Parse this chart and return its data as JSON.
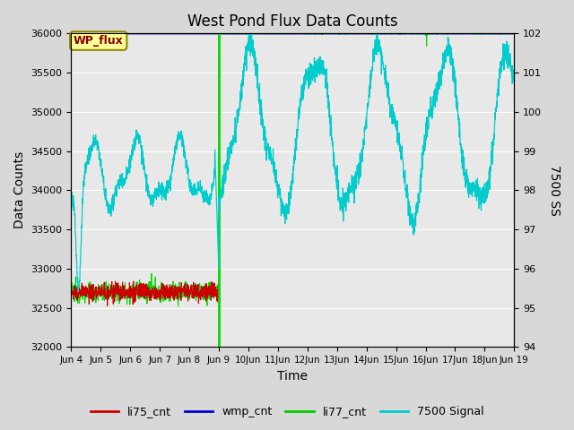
{
  "title": "West Pond Flux Data Counts",
  "ylabel_left": "Data Counts",
  "ylabel_right": "7500 SS",
  "xlabel": "Time",
  "ylim_left": [
    32000,
    36000
  ],
  "ylim_right": [
    94.0,
    102.0
  ],
  "yticks_left": [
    32000,
    32500,
    33000,
    33500,
    34000,
    34500,
    35000,
    35500,
    36000
  ],
  "yticks_right": [
    94.0,
    95.0,
    96.0,
    97.0,
    98.0,
    99.0,
    100.0,
    101.0,
    102.0
  ],
  "wp_flux_label": "WP_flux",
  "legend_labels": [
    "li75_cnt",
    "wmp_cnt",
    "li77_cnt",
    "7500 Signal"
  ],
  "legend_colors": [
    "#cc0000",
    "#0000cc",
    "#00cc00",
    "#00cccc"
  ],
  "bg_color": "#d8d8d8",
  "ax_bg_color": "#e8e8e8",
  "wp_box_facecolor": "#ffff99",
  "wp_box_edgecolor": "#888800",
  "wp_text_color": "#880000",
  "line_li77_color": "#00dd00",
  "line_wmp_color": "#0000cc",
  "line_li75_color": "#cc0000",
  "line_cyan_color": "#00cccc",
  "vline_color": "#00dd00",
  "grid_color": "#ffffff",
  "x_ticks": [
    0,
    1,
    2,
    3,
    4,
    5,
    6,
    7,
    8,
    9,
    10,
    11,
    12,
    13,
    14,
    15
  ],
  "x_tick_labels": [
    "Jun 4",
    "Jun 5",
    "Jun 6",
    "Jun 7",
    "Jun 8",
    "Jun 9",
    "10Jun",
    "11Jun",
    "12Jun",
    "13Jun",
    "14Jun",
    "15Jun",
    "16Jun",
    "17Jun",
    "18Jun",
    "Jun 19"
  ],
  "jun9_day": 5,
  "figsize": [
    6.4,
    4.8
  ],
  "dpi": 100
}
